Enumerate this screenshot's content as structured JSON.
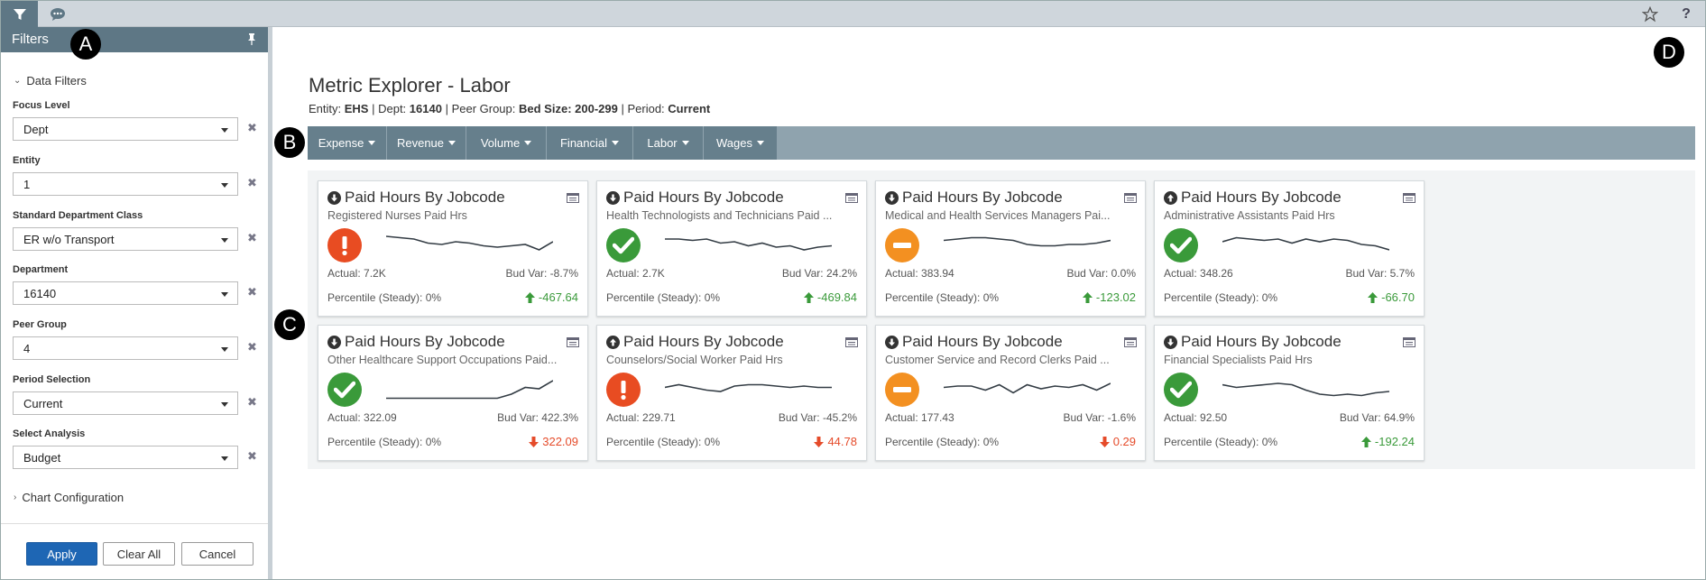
{
  "toolbar": {
    "filter_icon": "filter-icon",
    "comment_icon": "comment-icon",
    "star_icon": "star-icon",
    "help_label": "?"
  },
  "sidebar": {
    "title": "Filters",
    "data_filters_label": "Data Filters",
    "fields": [
      {
        "label": "Focus Level",
        "value": "Dept"
      },
      {
        "label": "Entity",
        "value": "1"
      },
      {
        "label": "Standard Department Class",
        "value": "ER w/o Transport"
      },
      {
        "label": "Department",
        "value": "16140"
      },
      {
        "label": "Peer Group",
        "value": "4"
      },
      {
        "label": "Period Selection",
        "value": "Current"
      },
      {
        "label": "Select Analysis",
        "value": "Budget"
      }
    ],
    "chart_config_label": "Chart Configuration",
    "apply": "Apply",
    "clear_all": "Clear All",
    "cancel": "Cancel"
  },
  "callouts": {
    "a": "A",
    "b": "B",
    "c": "C",
    "d": "D"
  },
  "page": {
    "title": "Metric Explorer - Labor",
    "sub": {
      "entity_label": "Entity:",
      "entity": "EHS",
      "dept_label": "Dept:",
      "dept": "16140",
      "peer_label": "Peer Group:",
      "peer": "Bed Size: 200-299",
      "period_label": "Period:",
      "period": "Current"
    }
  },
  "nav": [
    "Expense",
    "Revenue",
    "Volume",
    "Financial",
    "Labor",
    "Wages"
  ],
  "cards": [
    {
      "title": "Paid Hours By Jobcode",
      "dir": "down",
      "subtitle": "Registered Nurses Paid Hrs",
      "status": "alert",
      "actual": "Actual: 7.2K",
      "budvar": "Bud Var: -8.7%",
      "percentile": "Percentile (Steady): 0%",
      "delta": "-467.64",
      "delta_dir": "up",
      "spark": [
        0.2,
        0.25,
        0.3,
        0.45,
        0.5,
        0.4,
        0.45,
        0.55,
        0.6,
        0.55,
        0.5,
        0.7,
        0.4
      ]
    },
    {
      "title": "Paid Hours By Jobcode",
      "dir": "down",
      "subtitle": "Health Technologists and Technicians Paid ...",
      "status": "ok",
      "actual": "Actual: 2.7K",
      "budvar": "Bud Var: 24.2%",
      "percentile": "Percentile (Steady): 0%",
      "delta": "-469.84",
      "delta_dir": "up",
      "spark": [
        0.3,
        0.3,
        0.35,
        0.3,
        0.45,
        0.4,
        0.55,
        0.45,
        0.6,
        0.55,
        0.7,
        0.6,
        0.55
      ]
    },
    {
      "title": "Paid Hours By Jobcode",
      "dir": "down",
      "subtitle": "Medical and Health Services Managers Pai...",
      "status": "neutral",
      "actual": "Actual: 383.94",
      "budvar": "Bud Var: 0.0%",
      "percentile": "Percentile (Steady): 0%",
      "delta": "-123.02",
      "delta_dir": "up",
      "spark": [
        0.35,
        0.3,
        0.25,
        0.25,
        0.3,
        0.35,
        0.5,
        0.55,
        0.55,
        0.5,
        0.5,
        0.45,
        0.35
      ]
    },
    {
      "title": "Paid Hours By Jobcode",
      "dir": "up",
      "subtitle": "Administrative Assistants Paid Hrs",
      "status": "ok",
      "actual": "Actual: 348.26",
      "budvar": "Bud Var: 5.7%",
      "percentile": "Percentile (Steady): 0%",
      "delta": "-66.70",
      "delta_dir": "up",
      "spark": [
        0.4,
        0.25,
        0.3,
        0.35,
        0.3,
        0.45,
        0.3,
        0.4,
        0.3,
        0.35,
        0.5,
        0.55,
        0.7
      ]
    },
    {
      "title": "Paid Hours By Jobcode",
      "dir": "down",
      "subtitle": "Other Healthcare Support Occupations Paid...",
      "status": "ok",
      "actual": "Actual: 322.09",
      "budvar": "Bud Var: 422.3%",
      "percentile": "Percentile (Steady): 0%",
      "delta": "322.09",
      "delta_dir": "down",
      "spark": [
        0.85,
        0.85,
        0.85,
        0.85,
        0.85,
        0.85,
        0.85,
        0.85,
        0.85,
        0.7,
        0.45,
        0.5,
        0.2
      ]
    },
    {
      "title": "Paid Hours By Jobcode",
      "dir": "up",
      "subtitle": "Counselors/Social Worker Paid Hrs",
      "status": "alert",
      "actual": "Actual: 229.71",
      "budvar": "Bud Var: -45.2%",
      "percentile": "Percentile (Steady): 0%",
      "delta": "44.78",
      "delta_dir": "down",
      "spark": [
        0.45,
        0.35,
        0.45,
        0.55,
        0.6,
        0.4,
        0.35,
        0.35,
        0.4,
        0.45,
        0.4,
        0.45,
        0.45
      ]
    },
    {
      "title": "Paid Hours By Jobcode",
      "dir": "down",
      "subtitle": "Customer Service and Record Clerks Paid ...",
      "status": "neutral",
      "actual": "Actual: 177.43",
      "budvar": "Bud Var: -1.6%",
      "percentile": "Percentile (Steady): 0%",
      "delta": "0.29",
      "delta_dir": "down",
      "spark": [
        0.45,
        0.4,
        0.4,
        0.55,
        0.35,
        0.65,
        0.35,
        0.5,
        0.4,
        0.45,
        0.35,
        0.55,
        0.3
      ]
    },
    {
      "title": "Paid Hours By Jobcode",
      "dir": "down",
      "subtitle": "Financial Specialists Paid Hrs",
      "status": "ok",
      "actual": "Actual: 92.50",
      "budvar": "Bud Var: 64.9%",
      "percentile": "Percentile (Steady): 0%",
      "delta": "-192.24",
      "delta_dir": "up",
      "spark": [
        0.35,
        0.45,
        0.4,
        0.35,
        0.3,
        0.35,
        0.55,
        0.7,
        0.75,
        0.7,
        0.75,
        0.65,
        0.6
      ]
    }
  ],
  "colors": {
    "alert": "#e84c22",
    "ok": "#3a9a3a",
    "neutral": "#f39021",
    "header": "#5e7785",
    "nav": "#667f8c",
    "apply": "#1e66b4"
  }
}
